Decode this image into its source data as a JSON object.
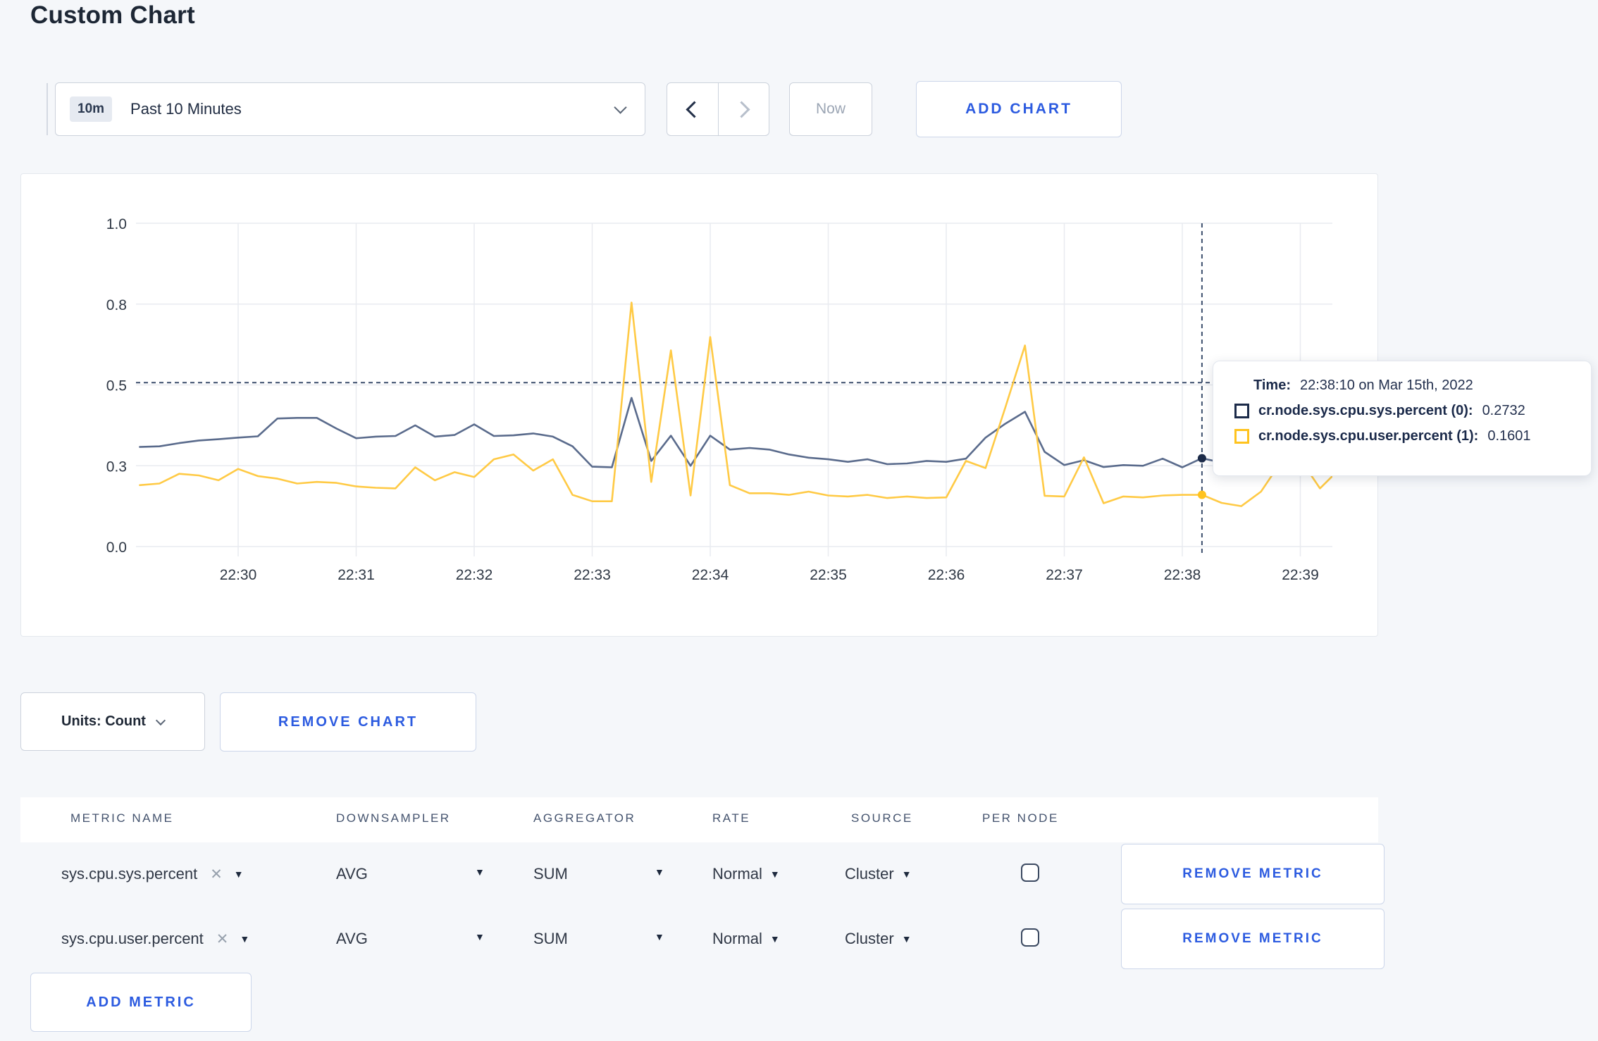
{
  "page": {
    "title": "Custom Chart"
  },
  "toolbar": {
    "time_range": {
      "badge": "10m",
      "label": "Past 10 Minutes"
    },
    "now_label": "Now",
    "add_chart_label": "ADD CHART"
  },
  "icons": {
    "caret_down": "▼",
    "close": "✕"
  },
  "chart_data": {
    "type": "line",
    "title": "",
    "xlabel": "",
    "ylabel": "",
    "grid": true,
    "legend_position": "tooltip",
    "ylim": [
      0,
      1
    ],
    "y_ticks": [
      {
        "value": 0,
        "label": "0.0"
      },
      {
        "value": 0.25,
        "label": "0.3"
      },
      {
        "value": 0.5,
        "label": "0.5"
      },
      {
        "value": 0.75,
        "label": "0.8"
      },
      {
        "value": 1,
        "label": "1.0"
      }
    ],
    "x_ticks": [
      "22:30",
      "22:31",
      "22:32",
      "22:33",
      "22:34",
      "22:35",
      "22:36",
      "22:37",
      "22:38",
      "22:39"
    ],
    "sample_interval_seconds": 10,
    "first_sample_offset_seconds": -50,
    "first_sample_time": "22:29:10",
    "crosshair": {
      "index": 54,
      "time": "22:38:10",
      "hline_value": 0.507
    },
    "series": [
      {
        "name": "cr.node.sys.cpu.sys.percent",
        "color": "#5a6b8c",
        "swatch": "#1c2b49",
        "values": [
          0.308,
          0.31,
          0.32,
          0.328,
          0.332,
          0.337,
          0.341,
          0.396,
          0.398,
          0.398,
          0.365,
          0.335,
          0.34,
          0.342,
          0.375,
          0.34,
          0.345,
          0.378,
          0.342,
          0.344,
          0.35,
          0.34,
          0.31,
          0.247,
          0.245,
          0.46,
          0.265,
          0.343,
          0.25,
          0.343,
          0.3,
          0.305,
          0.3,
          0.285,
          0.275,
          0.27,
          0.262,
          0.27,
          0.255,
          0.257,
          0.265,
          0.262,
          0.272,
          0.337,
          0.38,
          0.417,
          0.293,
          0.252,
          0.267,
          0.246,
          0.252,
          0.25,
          0.272,
          0.245,
          0.2732,
          0.26,
          0.27,
          0.272,
          0.268,
          0.272,
          0.265,
          0.27
        ]
      },
      {
        "name": "cr.node.sys.cpu.user.percent",
        "color": "#ffca45",
        "swatch": "#ffc31e",
        "values": [
          0.19,
          0.195,
          0.225,
          0.22,
          0.205,
          0.24,
          0.218,
          0.21,
          0.195,
          0.2,
          0.197,
          0.186,
          0.182,
          0.18,
          0.245,
          0.205,
          0.23,
          0.215,
          0.27,
          0.285,
          0.235,
          0.27,
          0.16,
          0.14,
          0.14,
          0.755,
          0.2,
          0.607,
          0.158,
          0.648,
          0.19,
          0.165,
          0.165,
          0.16,
          0.17,
          0.158,
          0.155,
          0.16,
          0.15,
          0.155,
          0.15,
          0.152,
          0.265,
          0.243,
          0.43,
          0.622,
          0.157,
          0.155,
          0.276,
          0.134,
          0.155,
          0.152,
          0.158,
          0.16,
          0.1601,
          0.135,
          0.125,
          0.17,
          0.26,
          0.27,
          0.18,
          0.24
        ]
      }
    ]
  },
  "tooltip": {
    "time_label": "Time:",
    "time_value": "22:38:10 on Mar 15th, 2022",
    "rows": [
      {
        "label": "cr.node.sys.cpu.sys.percent (0):",
        "value": "0.2732"
      },
      {
        "label": "cr.node.sys.cpu.user.percent (1):",
        "value": "0.1601"
      }
    ]
  },
  "footer": {
    "units_label": "Units: Count",
    "remove_chart_label": "REMOVE CHART",
    "add_metric_label": "ADD METRIC"
  },
  "table": {
    "headers": [
      "METRIC NAME",
      "DOWNSAMPLER",
      "AGGREGATOR",
      "RATE",
      "SOURCE",
      "PER NODE"
    ],
    "rows": [
      {
        "metric": "sys.cpu.sys.percent",
        "downsampler": "AVG",
        "aggregator": "SUM",
        "rate": "Normal",
        "source": "Cluster",
        "per_node_checked": false,
        "remove_label": "REMOVE METRIC"
      },
      {
        "metric": "sys.cpu.user.percent",
        "downsampler": "AVG",
        "aggregator": "SUM",
        "rate": "Normal",
        "source": "Cluster",
        "per_node_checked": false,
        "remove_label": "REMOVE METRIC"
      }
    ]
  }
}
